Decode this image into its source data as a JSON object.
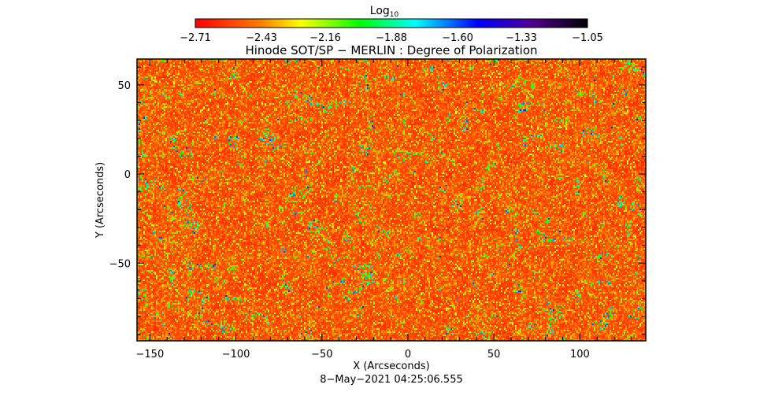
{
  "chart_data": {
    "type": "heatmap",
    "title": "Hinode SOT/SP − MERLIN : Degree of Polarization",
    "xlabel": "X (Arcseconds)",
    "ylabel": "Y (Arcseconds)",
    "footer": "8−May−2021 04:25:06.555",
    "xlim": [
      -157.5,
      138.3
    ],
    "ylim": [
      -93.6,
      64.5
    ],
    "x_ticks": [
      -150,
      -100,
      -50,
      0,
      50,
      100
    ],
    "x_tick_labels": [
      "−150",
      "−100",
      "−50",
      "0",
      "50",
      "100"
    ],
    "y_ticks": [
      50,
      0,
      -50
    ],
    "y_tick_labels": [
      "50",
      "0",
      "−50"
    ],
    "colorbar": {
      "label_base": "Log",
      "label_sub": "10",
      "range": [
        -2.71,
        -1.05
      ],
      "ticks": [
        -2.71,
        -2.43,
        -2.16,
        -1.88,
        -1.6,
        -1.33,
        -1.05
      ],
      "tick_labels": [
        "−2.71",
        "−2.43",
        "−2.16",
        "−1.88",
        "−1.60",
        "−1.33",
        "−1.05"
      ],
      "colormap": [
        "#ff0000",
        "#ff8000",
        "#ffff00",
        "#00ff00",
        "#00ffff",
        "#0000ff",
        "#500090",
        "#000000"
      ]
    },
    "grid": false,
    "description_of_values": "mostly -2.7 to -2.4 (red/orange/yellow) with sparse green/blue patches up to about -1.4"
  }
}
